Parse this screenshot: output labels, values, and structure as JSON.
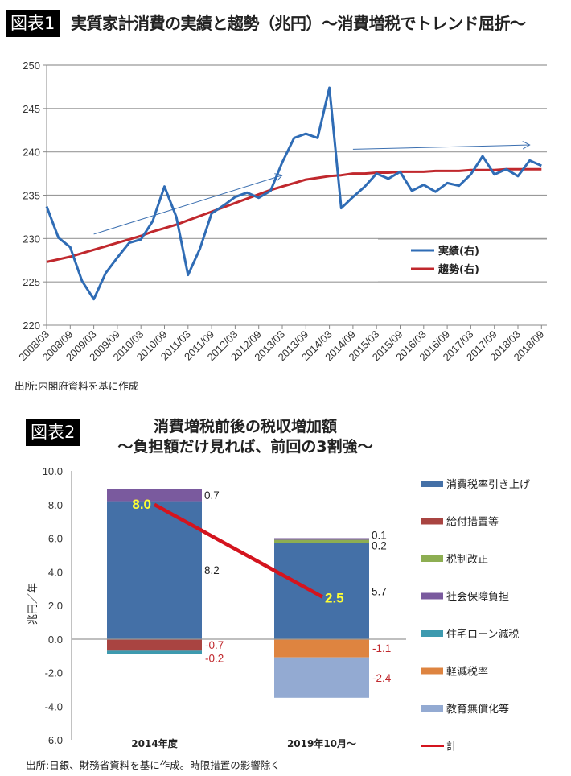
{
  "figure1": {
    "badge": "図表1",
    "title": "実質家計消費の実績と趨勢（兆円）〜消費増税でトレンド屈折〜",
    "source": "出所:内閣府資料を基に作成"
  },
  "figure2": {
    "badge": "図表2",
    "title_line1": "消費増税前後の税収増加額",
    "title_line2": "〜負担額だけ見れば、前回の3割強〜",
    "source": "出所:日銀、財務省資料を基に作成。時限措置の影響除く"
  },
  "chart_data": [
    {
      "type": "line",
      "title": "実質家計消費の実績と趨勢（兆円）〜消費増税でトレンド屈折〜",
      "xlabel": "",
      "ylabel": "",
      "ylim": [
        220,
        250
      ],
      "yticks": [
        220,
        225,
        230,
        235,
        240,
        245,
        250
      ],
      "grid": true,
      "legend_position": "bottom-right",
      "x_tick_labels": [
        "2008/03",
        "2008/09",
        "2009/03",
        "2009/09",
        "2010/03",
        "2010/09",
        "2011/03",
        "2011/09",
        "2012/03",
        "2012/09",
        "2013/03",
        "2013/09",
        "2014/03",
        "2014/09",
        "2015/03",
        "2015/09",
        "2016/03",
        "2016/09",
        "2017/03",
        "2017/09",
        "2018/03",
        "2018/09"
      ],
      "x_frequency": "quarterly",
      "series": [
        {
          "name": "実績(右)",
          "color": "#2F6CB5",
          "values": [
            233.7,
            230.1,
            229.0,
            225.1,
            223.0,
            226.0,
            227.8,
            229.5,
            229.9,
            232.0,
            236.0,
            232.5,
            225.8,
            228.8,
            232.9,
            233.8,
            234.8,
            235.3,
            234.7,
            235.5,
            238.8,
            241.6,
            242.1,
            241.6,
            247.4,
            233.5,
            234.8,
            236.0,
            237.5,
            236.9,
            237.7,
            235.5,
            236.2,
            235.4,
            236.4,
            236.1,
            237.4,
            239.5,
            237.4,
            238.0,
            237.2,
            239.0,
            238.4
          ]
        },
        {
          "name": "趨勢(右)",
          "color": "#C0282D",
          "values": [
            227.3,
            227.6,
            227.9,
            228.3,
            228.7,
            229.1,
            229.5,
            229.9,
            230.3,
            230.8,
            231.2,
            231.6,
            232.1,
            232.6,
            233.1,
            233.6,
            234.1,
            234.6,
            235.1,
            235.6,
            236.0,
            236.4,
            236.8,
            237.0,
            237.2,
            237.3,
            237.5,
            237.5,
            237.6,
            237.6,
            237.7,
            237.7,
            237.7,
            237.8,
            237.8,
            237.8,
            237.9,
            237.9,
            237.9,
            238.0,
            238.0,
            238.0,
            238.0
          ]
        }
      ],
      "annotations": [
        {
          "type": "arrow",
          "description": "trend arrow 2009-2013",
          "from": {
            "x_index": 4,
            "y": 230.5
          },
          "to": {
            "x_index": 20,
            "y": 237.3
          }
        },
        {
          "type": "arrow",
          "description": "flat arrow after 2014",
          "from": {
            "x_index": 26,
            "y": 240.3
          },
          "to": {
            "x_index": 41,
            "y": 240.8
          }
        }
      ]
    },
    {
      "type": "bar",
      "stacked": true,
      "title": "消費増税前後の税収増加額 〜負担額だけ見れば、前回の3割強〜",
      "xlabel": "",
      "ylabel": "兆円／年",
      "ylim": [
        -6.0,
        10.0
      ],
      "yticks": [
        "-6.0",
        "-4.0",
        "-2.0",
        "0.0",
        "2.0",
        "4.0",
        "6.0",
        "8.0",
        "10.0"
      ],
      "legend_position": "right",
      "categories": [
        "2014年度",
        "2019年10月〜"
      ],
      "series": [
        {
          "name": "消費税率引き上げ",
          "color": "#4470A7",
          "values": [
            8.2,
            5.7
          ],
          "labels": [
            "8.2",
            "5.7"
          ]
        },
        {
          "name": "給付措置等",
          "color": "#A94441",
          "values": [
            -0.7,
            0
          ],
          "labels": [
            "-0.7",
            ""
          ]
        },
        {
          "name": "税制改正",
          "color": "#8DAE52",
          "values": [
            0,
            0.2
          ],
          "labels": [
            "",
            "0.2"
          ]
        },
        {
          "name": "社会保障負担",
          "color": "#7A5A9E",
          "values": [
            0.7,
            0.1
          ],
          "labels": [
            "0.7",
            "0.1"
          ]
        },
        {
          "name": "住宅ローン減税",
          "color": "#3D9AAF",
          "values": [
            -0.2,
            0
          ],
          "labels": [
            "-0.2",
            ""
          ]
        },
        {
          "name": "軽減税率",
          "color": "#DE8440",
          "values": [
            0,
            -1.1
          ],
          "labels": [
            "",
            "-1.1"
          ]
        },
        {
          "name": "教育無償化等",
          "color": "#93AAD2",
          "values": [
            0,
            -2.4
          ],
          "labels": [
            "",
            "-2.4"
          ]
        }
      ],
      "line_series": {
        "name": "計",
        "color": "#D4141E",
        "values": [
          8.0,
          2.5
        ],
        "labels": [
          "8.0",
          "2.5"
        ]
      },
      "positive_label_color": "#222222",
      "negative_label_color": "#C0282D"
    }
  ]
}
